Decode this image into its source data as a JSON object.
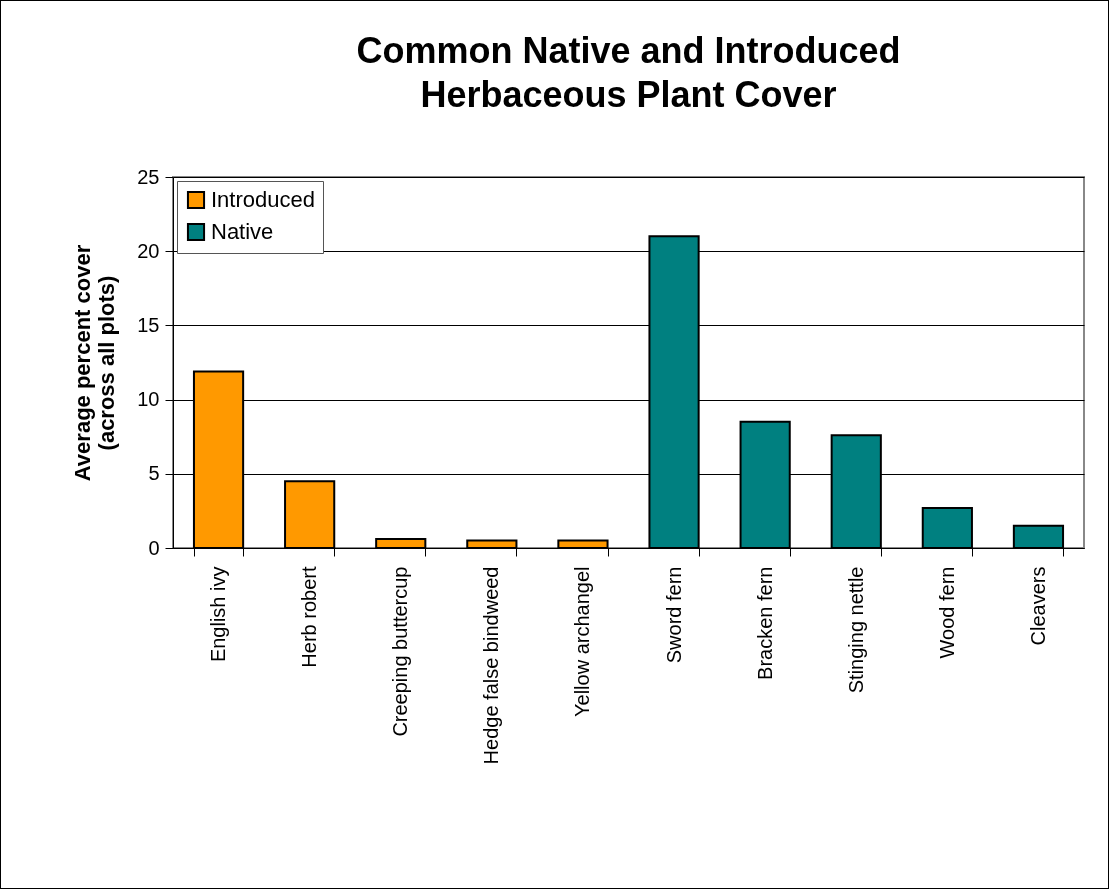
{
  "chart_data": {
    "type": "bar",
    "title": "Common Native and Introduced Herbaceous Plant Cover",
    "ylabel": "Average percent cover (across all plots)",
    "categories": [
      "English ivy",
      "Herb robert",
      "Creeping buttercup",
      "Hedge false bindweed",
      "Yellow archangel",
      "Sword fern",
      "Bracken fern",
      "Stinging nettle",
      "Wood fern",
      "Cleavers"
    ],
    "series": [
      {
        "name": "Introduced",
        "color": "#ff9900",
        "values": [
          11.9,
          4.5,
          0.6,
          0.5,
          0.5,
          null,
          null,
          null,
          null,
          null
        ]
      },
      {
        "name": "Native",
        "color": "#008080",
        "values": [
          null,
          null,
          null,
          null,
          null,
          21.0,
          8.5,
          7.6,
          2.7,
          1.5
        ]
      }
    ],
    "stacked": true,
    "ylim": [
      0,
      25
    ],
    "yticks": [
      0,
      5,
      10,
      15,
      20,
      25
    ],
    "grid": "y",
    "legend": "top left"
  }
}
